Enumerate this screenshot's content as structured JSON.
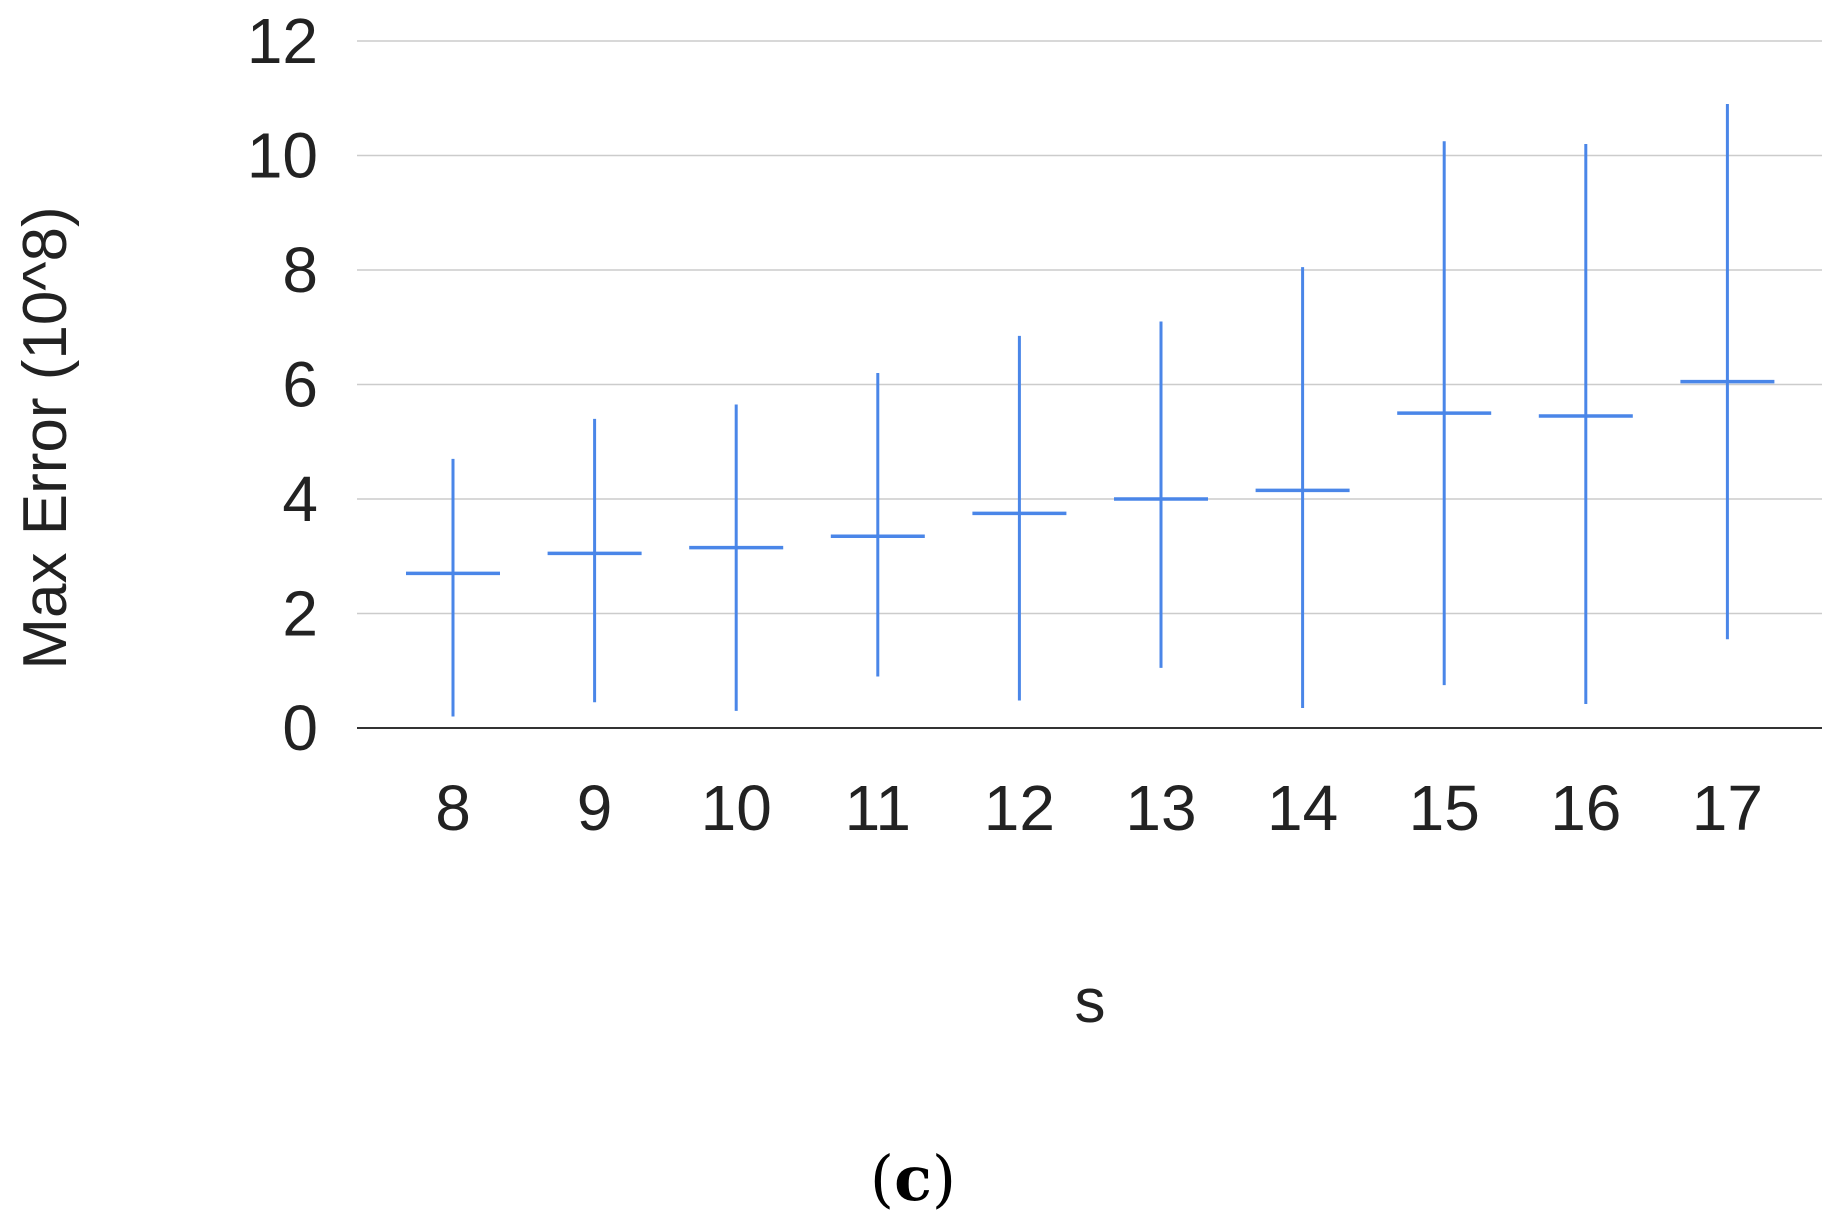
{
  "chart_data": {
    "type": "bar",
    "subtype": "range-with-marker",
    "categories": [
      "8",
      "9",
      "10",
      "11",
      "12",
      "13",
      "14",
      "15",
      "16",
      "17"
    ],
    "series": [
      {
        "values": [
          2.7,
          3.05,
          3.15,
          3.35,
          3.75,
          4.0,
          4.15,
          5.5,
          5.45,
          6.05
        ],
        "low": [
          0.2,
          0.45,
          0.3,
          0.9,
          0.48,
          1.05,
          0.35,
          0.75,
          0.42,
          1.55
        ],
        "high": [
          4.7,
          5.4,
          5.65,
          6.2,
          6.85,
          7.1,
          8.05,
          10.25,
          10.2,
          10.9
        ]
      }
    ],
    "xlabel": "s",
    "ylabel": "Max Error (10^8)",
    "ylim": [
      0,
      12
    ],
    "yticks": [
      0,
      2,
      4,
      6,
      8,
      10,
      12
    ],
    "grid": true,
    "legend": "none",
    "colors": {
      "series": "#4a86e8",
      "grid": "#cccccc",
      "axis": "#333333"
    }
  },
  "caption": {
    "open": "(",
    "letter": "c",
    "close": ")"
  }
}
